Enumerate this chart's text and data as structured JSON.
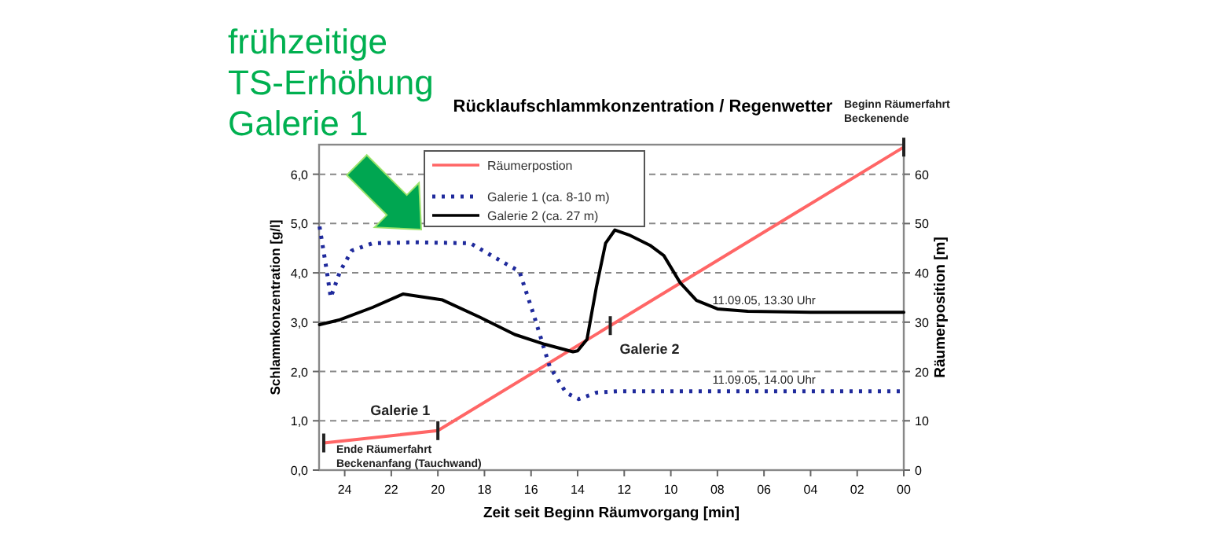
{
  "chart_data": {
    "type": "line",
    "title": "Rücklaufschlammkonzentration / Regenwetter",
    "xlabel": "Zeit seit Beginn Räumvorgang [min]",
    "ylabel": "Schlammkonzentration [g/l]",
    "y2label": "Räumerposition [m]",
    "xlim": [
      25.1,
      0
    ],
    "xticks": [
      24,
      22,
      20,
      18,
      16,
      14,
      12,
      10,
      {
        "value": 8,
        "label": "08"
      },
      {
        "value": 6,
        "label": "06"
      },
      {
        "value": 4,
        "label": "04"
      },
      {
        "value": 2,
        "label": "02"
      },
      {
        "value": 0,
        "label": "00"
      }
    ],
    "ylim": [
      0,
      6.6
    ],
    "yticks": [
      {
        "value": 0,
        "label": "0,0"
      },
      {
        "value": 1,
        "label": "1,0"
      },
      {
        "value": 2,
        "label": "2,0"
      },
      {
        "value": 3,
        "label": "3,0"
      },
      {
        "value": 4,
        "label": "4,0"
      },
      {
        "value": 5,
        "label": "5,0"
      },
      {
        "value": 6,
        "label": "6,0"
      }
    ],
    "y2lim": [
      0,
      66
    ],
    "y2ticks": [
      0,
      10,
      20,
      30,
      40,
      50,
      60
    ],
    "grid": "y",
    "legend": "top left",
    "series": [
      {
        "name": "Räumerpostion",
        "color": "#ff6666",
        "axis": "y2",
        "line_style": "solid",
        "x": [
          24.9,
          20,
          0
        ],
        "values": [
          5.5,
          8,
          65.5
        ]
      },
      {
        "name": "Galerie 1 (ca. 8-10 m)",
        "color": "#1f2a9c",
        "line_style": "dotted",
        "x": [
          25.08,
          24.8,
          24.6,
          24.2,
          23.7,
          22.8,
          21,
          18.6,
          17.7,
          16.5,
          15.9,
          15.2,
          14.5,
          13.95,
          13.2,
          12.3,
          8,
          4,
          0
        ],
        "values": [
          4.94,
          4.13,
          3.5,
          4.03,
          4.45,
          4.6,
          4.62,
          4.6,
          4.35,
          4.03,
          3.17,
          2.1,
          1.57,
          1.44,
          1.57,
          1.6,
          1.6,
          1.6,
          1.6
        ]
      },
      {
        "name": "Galerie 2 (ca. 27 m)",
        "color": "#000000",
        "line_style": "solid",
        "x": [
          25.08,
          24.2,
          22.8,
          21.5,
          19.8,
          18.2,
          16.7,
          15.4,
          14.2,
          14.0,
          13.6,
          13.2,
          12.8,
          12.4,
          11.8,
          10.9,
          10.3,
          9.6,
          8.9,
          8.0,
          6.7,
          4,
          0
        ],
        "values": [
          2.95,
          3.05,
          3.3,
          3.57,
          3.45,
          3.1,
          2.75,
          2.55,
          2.4,
          2.42,
          2.65,
          3.7,
          4.6,
          4.87,
          4.77,
          4.56,
          4.35,
          3.8,
          3.44,
          3.27,
          3.22,
          3.2,
          3.2
        ]
      }
    ],
    "annotations": [
      {
        "text": "Ende Räumerfahrt\nBeckenanfang (Tauchwand)",
        "x": 24.9,
        "y": 0.55
      },
      {
        "text": "Galerie 1",
        "x": 20,
        "y": 0.8
      },
      {
        "text": "Galerie 2",
        "x": 12.6,
        "y": 2.93
      },
      {
        "text": "Beginn Räumerfahrt\nBeckenende",
        "x": 0,
        "y": 6.55
      },
      {
        "text": "11.09.05, 13.30 Uhr",
        "x": 6,
        "y": 3.2
      },
      {
        "text": "11.09.05, 14.00 Uhr",
        "x": 6,
        "y": 1.6
      },
      "frühzeitige\nTS-Erhöhung\nGalerie 1"
    ]
  }
}
